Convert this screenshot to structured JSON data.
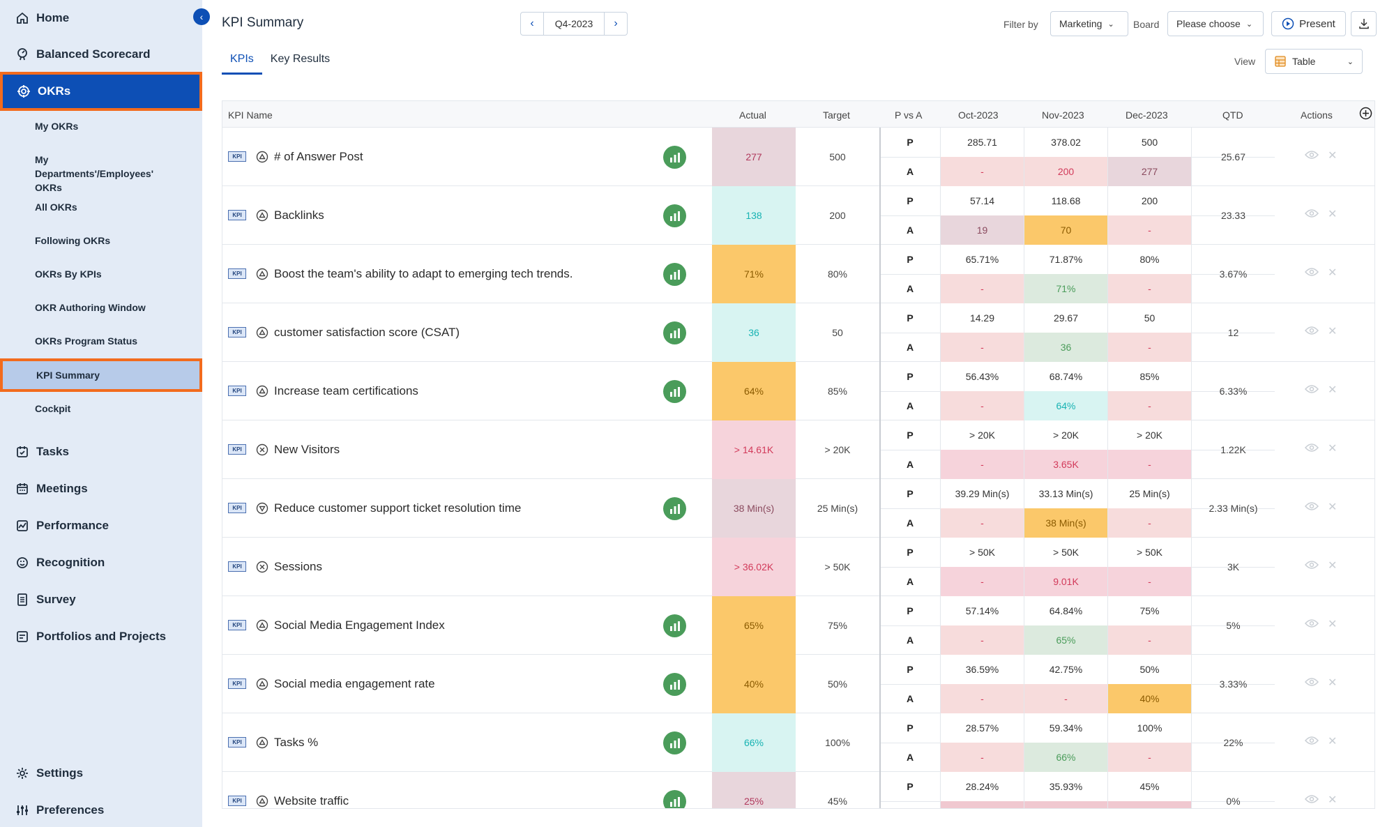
{
  "sidebar": {
    "main_top": [
      {
        "label": "Home",
        "icon": "home-icon"
      },
      {
        "label": "Balanced Scorecard",
        "icon": "scorecard-icon"
      },
      {
        "label": "OKRs",
        "icon": "target-icon"
      }
    ],
    "okr_sub": [
      "My OKRs",
      "My Departments'/Employees' OKRs",
      "All OKRs",
      "Following OKRs",
      "OKRs By KPIs",
      "OKR Authoring Window",
      "OKRs Program Status",
      "KPI Summary",
      "Cockpit"
    ],
    "main_bottom": [
      {
        "label": "Tasks",
        "icon": "tasks-icon"
      },
      {
        "label": "Meetings",
        "icon": "calendar-icon"
      },
      {
        "label": "Performance",
        "icon": "performance-icon"
      },
      {
        "label": "Recognition",
        "icon": "recognition-icon"
      },
      {
        "label": "Survey",
        "icon": "survey-icon"
      },
      {
        "label": "Portfolios and Projects",
        "icon": "portfolio-icon"
      }
    ],
    "footer": [
      {
        "label": "Settings",
        "icon": "gear-icon"
      },
      {
        "label": "Preferences",
        "icon": "sliders-icon"
      }
    ]
  },
  "header": {
    "title": "KPI Summary",
    "period": "Q4-2023",
    "filter_label": "Filter by",
    "filter_value": "Marketing",
    "board_label": "Board",
    "board_value": "Please choose",
    "present_label": "Present",
    "view_label": "View",
    "view_value": "Table"
  },
  "tabs": [
    "KPIs",
    "Key Results"
  ],
  "table": {
    "headers": {
      "name": "KPI Name",
      "actual": "Actual",
      "target": "Target",
      "pva": "P vs A",
      "m1": "Oct-2023",
      "m2": "Nov-2023",
      "m3": "Dec-2023",
      "qtd": "QTD",
      "actions": "Actions"
    },
    "badge": "KPI",
    "p_label": "P",
    "a_label": "A",
    "rows": [
      {
        "name": "# of Answer Post",
        "trend": true,
        "actual": "277",
        "target": "500",
        "p": [
          "285.71",
          "378.02",
          "500"
        ],
        "a": [
          "-",
          "200",
          "277"
        ],
        "qtd": "25.67"
      },
      {
        "name": "Backlinks",
        "trend": true,
        "actual": "138",
        "target": "200",
        "p": [
          "57.14",
          "118.68",
          "200"
        ],
        "a": [
          "19",
          "70",
          "-"
        ],
        "qtd": "23.33"
      },
      {
        "name": "Boost the team's ability to adapt to emerging tech trends.",
        "trend": true,
        "actual": "71%",
        "target": "80%",
        "p": [
          "65.71%",
          "71.87%",
          "80%"
        ],
        "a": [
          "-",
          "71%",
          "-"
        ],
        "qtd": "3.67%"
      },
      {
        "name": "customer satisfaction score (CSAT)",
        "trend": true,
        "actual": "36",
        "target": "50",
        "p": [
          "14.29",
          "29.67",
          "50"
        ],
        "a": [
          "-",
          "36",
          "-"
        ],
        "qtd": "12"
      },
      {
        "name": "Increase team certifications",
        "trend": true,
        "actual": "64%",
        "target": "85%",
        "p": [
          "56.43%",
          "68.74%",
          "85%"
        ],
        "a": [
          "-",
          "64%",
          "-"
        ],
        "qtd": "6.33%"
      },
      {
        "name": "New Visitors",
        "trend": false,
        "actual": "> 14.61K",
        "target": "> 20K",
        "p": [
          "> 20K",
          "> 20K",
          "> 20K"
        ],
        "a": [
          "-",
          "3.65K",
          "-"
        ],
        "qtd": "1.22K"
      },
      {
        "name": "Reduce customer support ticket resolution time",
        "trend": true,
        "actual": "38 Min(s)",
        "target": "25 Min(s)",
        "p": [
          "39.29 Min(s)",
          "33.13 Min(s)",
          "25 Min(s)"
        ],
        "a": [
          "-",
          "38 Min(s)",
          "-"
        ],
        "qtd": "2.33 Min(s)"
      },
      {
        "name": "Sessions",
        "trend": false,
        "actual": "> 36.02K",
        "target": "> 50K",
        "p": [
          "> 50K",
          "> 50K",
          "> 50K"
        ],
        "a": [
          "-",
          "9.01K",
          "-"
        ],
        "qtd": "3K"
      },
      {
        "name": "Social Media Engagement Index",
        "trend": true,
        "actual": "65%",
        "target": "75%",
        "p": [
          "57.14%",
          "64.84%",
          "75%"
        ],
        "a": [
          "-",
          "65%",
          "-"
        ],
        "qtd": "5%"
      },
      {
        "name": "Social media engagement rate",
        "trend": true,
        "actual": "40%",
        "target": "50%",
        "p": [
          "36.59%",
          "42.75%",
          "50%"
        ],
        "a": [
          "-",
          "-",
          "40%"
        ],
        "qtd": "3.33%"
      },
      {
        "name": "Tasks %",
        "trend": true,
        "actual": "66%",
        "target": "100%",
        "p": [
          "28.57%",
          "59.34%",
          "100%"
        ],
        "a": [
          "-",
          "66%",
          "-"
        ],
        "qtd": "22%"
      },
      {
        "name": "Website traffic",
        "trend": true,
        "actual": "25%",
        "target": "45%",
        "p": [
          "28.24%",
          "35.93%",
          "45%"
        ],
        "a": [
          "",
          "",
          ""
        ],
        "qtd": "0%"
      }
    ]
  },
  "colors": {
    "primary": "#0d4fb5",
    "highlight_outline": "#f26b1d",
    "pink": "#e8d6dc",
    "cyan": "#d8f4f2",
    "orange": "#fbc86a",
    "red_light": "#f7dcdc",
    "rose": "#f6d3db",
    "green_light": "#dceade",
    "trend_green": "#4a9c5a"
  }
}
